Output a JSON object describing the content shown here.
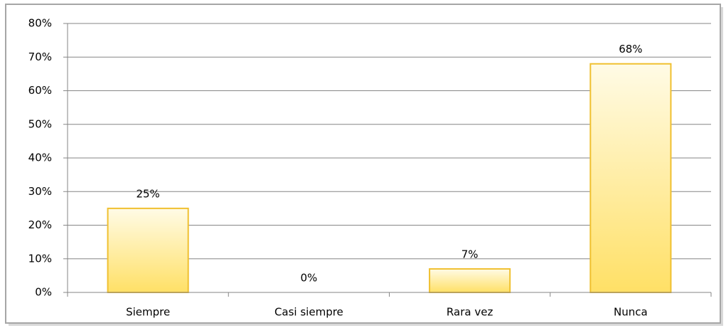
{
  "chart_data": {
    "type": "bar",
    "categories": [
      "Siempre",
      "Casi siempre",
      "Rara vez",
      "Nunca"
    ],
    "values": [
      25,
      0,
      7,
      68
    ],
    "value_labels": [
      "25%",
      "0%",
      "7%",
      "68%"
    ],
    "color": "#ffe066",
    "ylim": [
      0,
      80
    ],
    "yticks": [
      {
        "value": 0,
        "label": "0%"
      },
      {
        "value": 10,
        "label": "10%"
      },
      {
        "value": 20,
        "label": "20%"
      },
      {
        "value": 30,
        "label": "30%"
      },
      {
        "value": 40,
        "label": "40%"
      },
      {
        "value": 50,
        "label": "50%"
      },
      {
        "value": 60,
        "label": "60%"
      },
      {
        "value": 70,
        "label": "70%"
      },
      {
        "value": 80,
        "label": "80%"
      }
    ],
    "grid": true
  }
}
